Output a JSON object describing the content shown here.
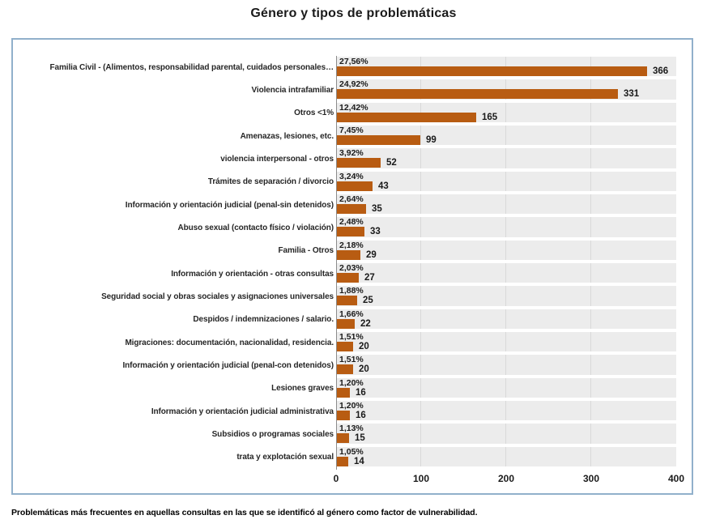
{
  "title": "Género y tipos de problemáticas",
  "footnote": "Problemáticas más frecuentes en aquellas consultas en las que se identificó al género como factor de vulnerabilidad.",
  "chart_data": {
    "type": "bar",
    "orientation": "horizontal",
    "title": "Género y tipos de problemáticas",
    "categories": [
      "Familia Civil - (Alimentos, responsabilidad parental, cuidados personales…",
      "Violencia intrafamiliar",
      "Otros <1%",
      "Amenazas, lesiones, etc.",
      "violencia interpersonal - otros",
      "Trámites de separación / divorcio",
      "Información y orientación judicial (penal-sin detenidos)",
      "Abuso sexual (contacto físico / violación)",
      "Familia - Otros",
      "Información y orientación - otras consultas",
      "Seguridad social y obras sociales y asignaciones universales",
      "Despidos / indemnizaciones / salario.",
      "Migraciones: documentación, nacionalidad, residencia.",
      "Información y orientación judicial (penal-con detenidos)",
      "Lesiones graves",
      "Información y orientación judicial administrativa",
      "Subsidios o programas sociales",
      "trata y explotación sexual"
    ],
    "values": [
      366,
      331,
      165,
      99,
      52,
      43,
      35,
      33,
      29,
      27,
      25,
      22,
      20,
      20,
      16,
      16,
      15,
      14
    ],
    "percent_labels": [
      "27,56%",
      "24,92%",
      "12,42%",
      "7,45%",
      "3,92%",
      "3,24%",
      "2,64%",
      "2,48%",
      "2,18%",
      "2,03%",
      "1,88%",
      "1,66%",
      "1,51%",
      "1,51%",
      "1,20%",
      "1,20%",
      "1,13%",
      "1,05%"
    ],
    "xlabel": "",
    "ylabel": "",
    "xlim": [
      0,
      400
    ],
    "x_ticks": [
      0,
      100,
      200,
      300,
      400
    ],
    "grid": "vertical",
    "legend": "none",
    "bar_color": "#B85C12",
    "plot_bg": "#ECECEC"
  }
}
